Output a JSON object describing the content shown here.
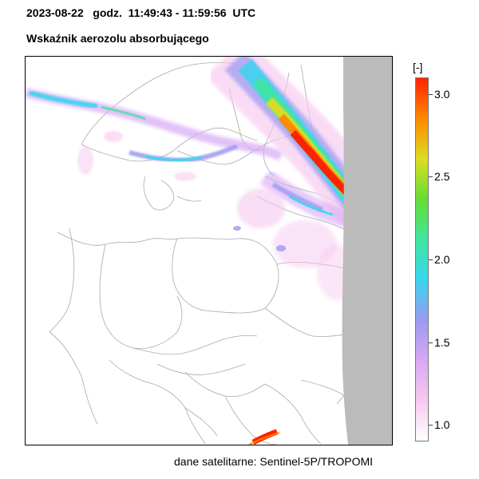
{
  "header": {
    "time_line": "2023-08-22   godz.  11:49:43 - 11:59:56  UTC",
    "title": "Wskaźnik aerozolu absorbującego"
  },
  "colorbar": {
    "unit": "[-]",
    "min": 0.9,
    "max": 3.1,
    "ticks": [
      {
        "value": 3.0,
        "label": "3.0"
      },
      {
        "value": 2.5,
        "label": "2.5"
      },
      {
        "value": 2.0,
        "label": "2.0"
      },
      {
        "value": 1.5,
        "label": "1.5"
      },
      {
        "value": 1.0,
        "label": "1.0"
      }
    ],
    "colors": [
      "#ffffff",
      "#f7c9f0",
      "#d8a8f4",
      "#9a9af0",
      "#38d6f0",
      "#3fe6a0",
      "#66dd33",
      "#dddd22",
      "#ff8800",
      "#ff2200"
    ]
  },
  "map": {
    "no_data_color": "#bbbbbb"
  },
  "source": "dane satelitarne: Sentinel-5P/TROPOMI"
}
